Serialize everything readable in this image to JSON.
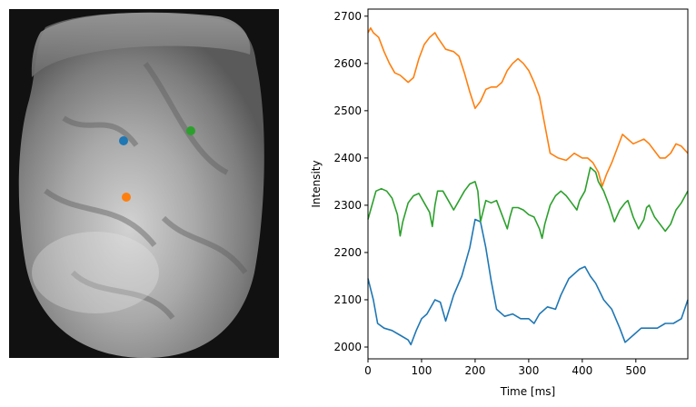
{
  "image_panel": {
    "description_icon": "heart-image",
    "markers": [
      {
        "name": "blue-marker",
        "color": "#1f77b4"
      },
      {
        "name": "orange-marker",
        "color": "#ff7f0e"
      },
      {
        "name": "green-marker",
        "color": "#2ca02c"
      }
    ]
  },
  "chart_data": {
    "type": "line",
    "title": "",
    "xlabel": "Time [ms]",
    "ylabel": "Intensity",
    "xlim": [
      0,
      597
    ],
    "ylim": [
      1975,
      2715
    ],
    "xticks": [
      0,
      100,
      200,
      300,
      400,
      500
    ],
    "yticks": [
      2000,
      2100,
      2200,
      2300,
      2400,
      2500,
      2600,
      2700
    ],
    "grid": false,
    "series": [
      {
        "color": "#1f77b4",
        "x": [
          0,
          10,
          18,
          30,
          45,
          60,
          75,
          80,
          90,
          100,
          110,
          125,
          135,
          145,
          160,
          175,
          190,
          200,
          210,
          220,
          230,
          240,
          255,
          270,
          285,
          300,
          310,
          320,
          335,
          350,
          360,
          375,
          385,
          395,
          405,
          415,
          425,
          440,
          455,
          470,
          480,
          495,
          510,
          525,
          540,
          555,
          570,
          585,
          597
        ],
        "y": [
          2145,
          2100,
          2050,
          2040,
          2035,
          2025,
          2015,
          2005,
          2035,
          2060,
          2070,
          2100,
          2095,
          2055,
          2110,
          2150,
          2210,
          2270,
          2265,
          2210,
          2140,
          2080,
          2065,
          2070,
          2060,
          2060,
          2050,
          2070,
          2085,
          2080,
          2110,
          2145,
          2155,
          2165,
          2170,
          2150,
          2135,
          2100,
          2080,
          2040,
          2010,
          2025,
          2040,
          2040,
          2040,
          2050,
          2050,
          2060,
          2100
        ]
      },
      {
        "color": "#ff7f0e",
        "x": [
          0,
          5,
          10,
          20,
          30,
          40,
          50,
          60,
          75,
          85,
          95,
          105,
          115,
          125,
          130,
          145,
          160,
          170,
          180,
          190,
          200,
          210,
          220,
          230,
          240,
          250,
          260,
          270,
          280,
          290,
          300,
          310,
          320,
          330,
          340,
          355,
          370,
          385,
          400,
          410,
          420,
          430,
          437,
          445,
          455,
          465,
          475,
          485,
          495,
          505,
          515,
          525,
          535,
          545,
          555,
          565,
          575,
          585,
          597
        ],
        "y": [
          2665,
          2675,
          2665,
          2655,
          2625,
          2600,
          2580,
          2575,
          2560,
          2570,
          2610,
          2640,
          2655,
          2665,
          2655,
          2630,
          2625,
          2615,
          2580,
          2540,
          2505,
          2520,
          2545,
          2550,
          2550,
          2560,
          2585,
          2600,
          2610,
          2600,
          2585,
          2560,
          2530,
          2470,
          2410,
          2400,
          2395,
          2410,
          2400,
          2400,
          2390,
          2370,
          2340,
          2365,
          2390,
          2420,
          2450,
          2440,
          2430,
          2435,
          2440,
          2430,
          2415,
          2400,
          2400,
          2410,
          2430,
          2425,
          2410
        ]
      },
      {
        "color": "#2ca02c",
        "x": [
          0,
          5,
          15,
          25,
          35,
          45,
          55,
          60,
          65,
          75,
          85,
          95,
          105,
          115,
          120,
          125,
          130,
          140,
          150,
          160,
          170,
          180,
          190,
          200,
          205,
          210,
          220,
          230,
          240,
          250,
          260,
          265,
          270,
          280,
          290,
          300,
          310,
          320,
          325,
          330,
          340,
          350,
          360,
          370,
          380,
          390,
          395,
          405,
          415,
          425,
          430,
          440,
          450,
          460,
          470,
          480,
          485,
          495,
          505,
          515,
          520,
          525,
          535,
          545,
          555,
          565,
          575,
          585,
          597
        ],
        "y": [
          2270,
          2290,
          2330,
          2335,
          2330,
          2315,
          2280,
          2235,
          2265,
          2305,
          2320,
          2325,
          2305,
          2285,
          2255,
          2300,
          2330,
          2330,
          2310,
          2290,
          2310,
          2330,
          2345,
          2350,
          2330,
          2265,
          2310,
          2305,
          2310,
          2280,
          2250,
          2275,
          2295,
          2295,
          2290,
          2280,
          2275,
          2250,
          2230,
          2260,
          2300,
          2320,
          2330,
          2320,
          2305,
          2290,
          2310,
          2330,
          2380,
          2370,
          2350,
          2330,
          2300,
          2265,
          2290,
          2305,
          2310,
          2275,
          2250,
          2270,
          2295,
          2300,
          2275,
          2260,
          2245,
          2260,
          2290,
          2305,
          2330
        ]
      }
    ]
  }
}
